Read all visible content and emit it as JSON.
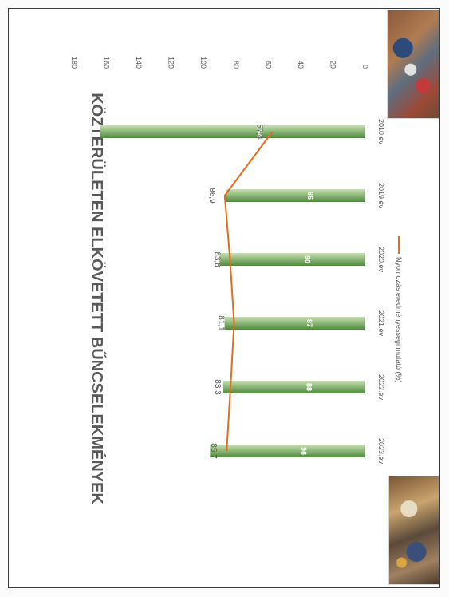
{
  "chart_data": {
    "type": "bar",
    "title": "KÖZTERÜLETEN ELKÖVETETT BŰNCSELEKMÉNYEK",
    "categories": [
      "2010.év",
      "2019.év",
      "2020.év",
      "2021.év",
      "2022.év",
      "2023.év"
    ],
    "series": [
      {
        "values": [
          164,
          86,
          90,
          87,
          88,
          96
        ],
        "value_labels": [
          "164",
          "86",
          "90",
          "87",
          "88",
          "96"
        ]
      },
      {
        "name": "Nyomozás eredményességi mutató (%)",
        "type": "line",
        "values": [
          57.4,
          86.9,
          83.6,
          81.1,
          83.3,
          85.7
        ],
        "value_labels": [
          "57,4",
          "86,9",
          "83,6",
          "81,1",
          "83,3",
          "85,7"
        ]
      }
    ],
    "ylim": [
      0,
      180
    ],
    "yticks": [
      "0",
      "20",
      "40",
      "60",
      "80",
      "100",
      "120",
      "140",
      "160",
      "180"
    ],
    "legend_position": "bottom",
    "orientation": "rotated 90° clockwise on page",
    "colors": {
      "bar_light": "#c6e1b0",
      "bar_dark": "#4e8a3c",
      "line": "#e36c1a",
      "title": "#595959"
    }
  }
}
